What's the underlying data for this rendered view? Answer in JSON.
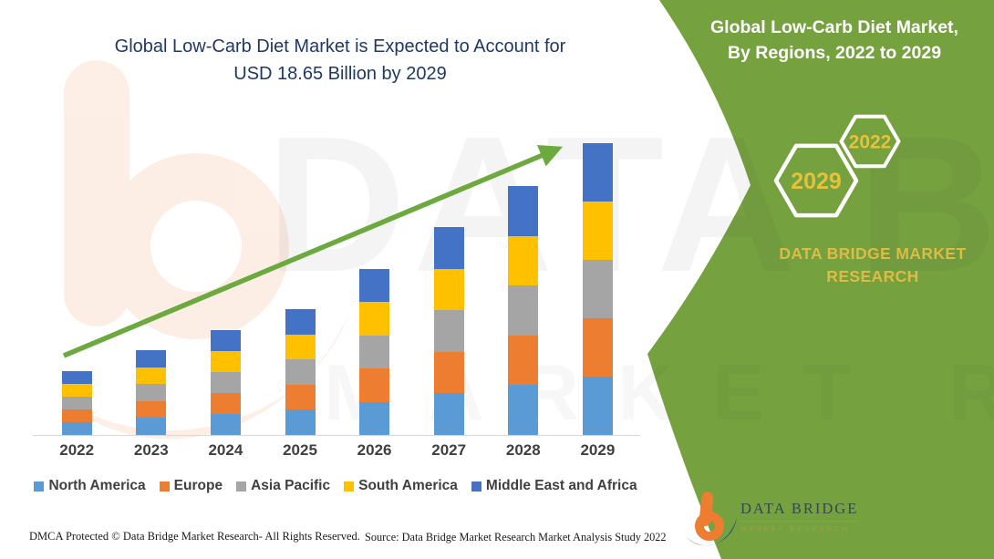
{
  "title": {
    "line1": "Global Low-Carb Diet Market is Expected to Account for",
    "line2": "USD 18.65 Billion by 2029"
  },
  "panel": {
    "title_line1": "Global Low-Carb Diet Market,",
    "title_line2": "By Regions, 2022 to 2029",
    "hexagons": [
      {
        "label": "2029"
      },
      {
        "label": "2022"
      }
    ],
    "brand_line1": "DATA BRIDGE MARKET",
    "brand_line2": "RESEARCH"
  },
  "chart_data": {
    "type": "stacked-bar",
    "title": "Global Low-Carb Diet Market is Expected to Account for USD 18.65 Billion by 2029",
    "unit": "USD Billion",
    "categories": [
      "2022",
      "2023",
      "2024",
      "2025",
      "2026",
      "2027",
      "2028",
      "2029"
    ],
    "series": [
      {
        "name": "North America",
        "color": "#5B9BD5",
        "values": [
          0.82,
          1.08,
          1.34,
          1.61,
          2.12,
          2.66,
          3.18,
          3.73
        ]
      },
      {
        "name": "Europe",
        "color": "#ED7D31",
        "values": [
          0.82,
          1.08,
          1.34,
          1.61,
          2.12,
          2.66,
          3.18,
          3.73
        ]
      },
      {
        "name": "Asia Pacific",
        "color": "#A5A5A5",
        "values": [
          0.81,
          1.08,
          1.34,
          1.6,
          2.12,
          2.66,
          3.18,
          3.73
        ]
      },
      {
        "name": "South America",
        "color": "#FFC000",
        "values": [
          0.81,
          1.08,
          1.35,
          1.6,
          2.13,
          2.65,
          3.18,
          3.73
        ]
      },
      {
        "name": "Middle East and Africa",
        "color": "#4472C4",
        "values": [
          0.82,
          1.08,
          1.35,
          1.61,
          2.13,
          2.66,
          3.19,
          3.73
        ]
      }
    ],
    "totals": [
      4.08,
      5.4,
      6.72,
      8.03,
      10.62,
      13.29,
      15.91,
      18.65
    ],
    "ylim": [
      0,
      18.65
    ],
    "grid": false,
    "axis_labels_shown": "x-only",
    "legend_position": "bottom",
    "annotation": "green upward trend arrow from 2022 to 2029"
  },
  "footer": {
    "dmca": "DMCA Protected © Data Bridge Market Research- All Rights Reserved.",
    "source": "Source: Data Bridge Market Research Market Analysis Study 2022"
  },
  "logo": {
    "title": "DATA BRIDGE",
    "subtitle": "MARKET RESEARCH"
  },
  "watermark": {
    "text_line1": "DATA BRIDGE",
    "text_line2": "MARKET RESEARCH"
  },
  "colors": {
    "panel_green": "#75A13F",
    "arrow_green": "#6CA93F",
    "title_blue": "#1F3864",
    "brand_gold": "#DDBC45",
    "hex_year_gold": "#E4C33C",
    "logo_orange": "#ED7D31",
    "logo_navy": "#1F4E79"
  }
}
